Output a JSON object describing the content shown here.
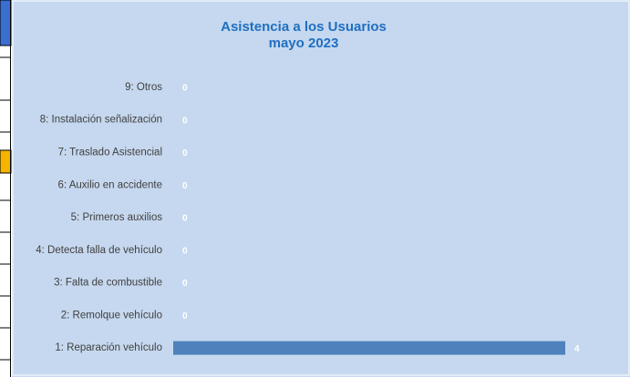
{
  "chart_data": {
    "type": "hbar",
    "title": "Asistencia a los Usuarios",
    "subtitle": "mayo 2023",
    "categories": [
      "1: Reparación vehículo",
      "2: Remolque vehículo",
      "3: Falta de combustible",
      "4: Detecta falla de vehículo",
      "5: Primeros auxilios",
      "6: Auxilio en accidente",
      "7: Traslado Asistencial",
      "8: Instalación señalización",
      "9: Otros"
    ],
    "values": [
      4,
      0,
      0,
      0,
      0,
      0,
      0,
      0,
      0
    ],
    "color": "#4f81bd"
  }
}
